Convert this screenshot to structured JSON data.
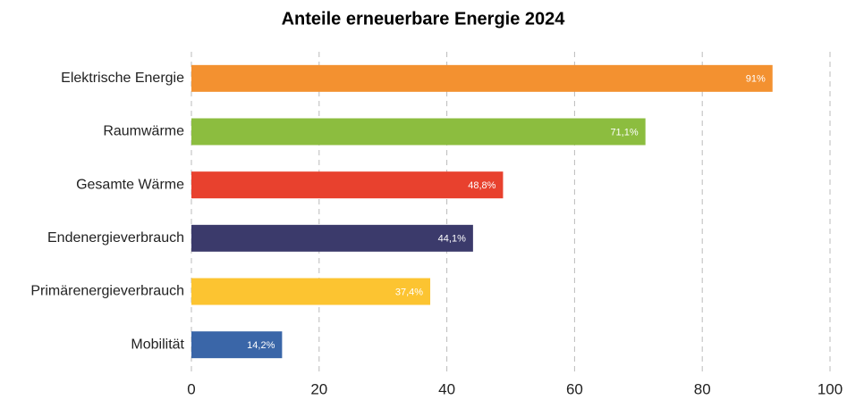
{
  "chart_data": {
    "type": "bar",
    "orientation": "horizontal",
    "title": "Anteile erneuerbare Energie 2024",
    "categories": [
      "Elektrische Energie",
      "Raumwärme",
      "Gesamte Wärme",
      "Endenergieverbrauch",
      "Primärenergieverbrauch",
      "Mobilität"
    ],
    "values": [
      91,
      71.1,
      48.8,
      44.1,
      37.4,
      14.2
    ],
    "value_labels": [
      "91%",
      "71,1%",
      "48,8%",
      "44,1%",
      "37,4%",
      "14,2%"
    ],
    "colors": [
      "#f39130",
      "#8cbd3f",
      "#e8412e",
      "#3b3a6b",
      "#fcc431",
      "#3a66a8"
    ],
    "xlim": [
      0,
      100
    ],
    "xticks": [
      0,
      20,
      40,
      60,
      80,
      100
    ],
    "grid": true
  }
}
